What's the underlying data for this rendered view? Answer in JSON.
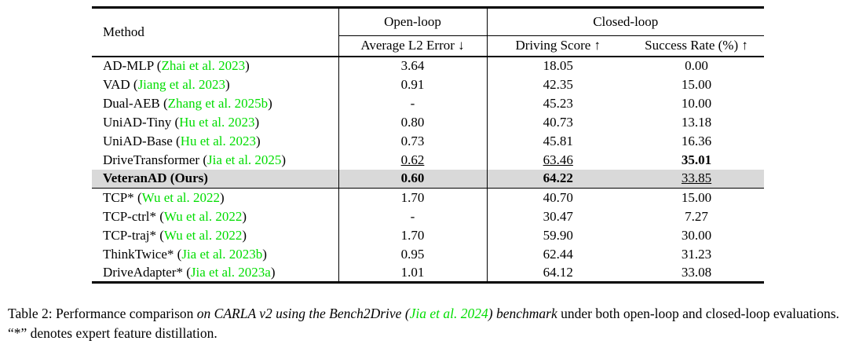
{
  "punct": {
    "open": "(",
    "close": ")"
  },
  "colors": {
    "citation_green": "#00DD00",
    "highlight_row": "#D9D9D9",
    "rule": "#000000"
  },
  "table": {
    "header": {
      "method": "Method",
      "open_loop_group": "Open-loop",
      "closed_loop_group": "Closed-loop",
      "avg_l2": "Average L2 Error ↓",
      "driving_score": "Driving Score ↑",
      "success_rate": "Success Rate (%) ↑"
    },
    "section1": {
      "rows": [
        {
          "method": "AD-MLP",
          "cite": "Zhai et al. 2023",
          "l2": "3.64",
          "ds": "18.05",
          "sr": "0.00"
        },
        {
          "method": "VAD",
          "cite": "Jiang et al. 2023",
          "l2": "0.91",
          "ds": "42.35",
          "sr": "15.00"
        },
        {
          "method": "Dual-AEB",
          "cite": "Zhang et al. 2025b",
          "l2": "-",
          "ds": "45.23",
          "sr": "10.00"
        },
        {
          "method": "UniAD-Tiny",
          "cite": "Hu et al. 2023",
          "l2": "0.80",
          "ds": "40.73",
          "sr": "13.18"
        },
        {
          "method": "UniAD-Base",
          "cite": "Hu et al. 2023",
          "l2": "0.73",
          "ds": "45.81",
          "sr": "16.36"
        },
        {
          "method": "DriveTransformer",
          "cite": "Jia et al. 2025",
          "l2": "0.62",
          "l2_style": "underline",
          "ds": "63.46",
          "ds_style": "underline",
          "sr": "35.01",
          "sr_style": "bold"
        },
        {
          "method": "VeteranAD",
          "cite": "Ours",
          "method_style": "bold",
          "highlighted": true,
          "l2": "0.60",
          "l2_style": "bold",
          "ds": "64.22",
          "ds_style": "bold",
          "sr": "33.85",
          "sr_style": "underline"
        }
      ]
    },
    "section2": {
      "rows": [
        {
          "method": "TCP*",
          "cite": "Wu et al. 2022",
          "l2": "1.70",
          "ds": "40.70",
          "sr": "15.00"
        },
        {
          "method": "TCP-ctrl*",
          "cite": "Wu et al. 2022",
          "l2": "-",
          "ds": "30.47",
          "sr": "7.27"
        },
        {
          "method": "TCP-traj*",
          "cite": "Wu et al. 2022",
          "l2": "1.70",
          "ds": "59.90",
          "sr": "30.00"
        },
        {
          "method": "ThinkTwice*",
          "cite": "Jia et al. 2023b",
          "l2": "0.95",
          "ds": "62.44",
          "sr": "31.23"
        },
        {
          "method": "DriveAdapter*",
          "cite": "Jia et al. 2023a",
          "l2": "1.01",
          "ds": "64.12",
          "sr": "33.08"
        }
      ]
    }
  },
  "caption": {
    "prefix": "Table 2: Performance comparison ",
    "italic_before_cite": "on CARLA v2 using the Bench2Drive (",
    "cite": "Jia et al. 2024",
    "italic_after_cite": ") benchmark",
    "suffix": " under both open-loop and closed-loop evaluations. “*” denotes expert feature distillation."
  }
}
